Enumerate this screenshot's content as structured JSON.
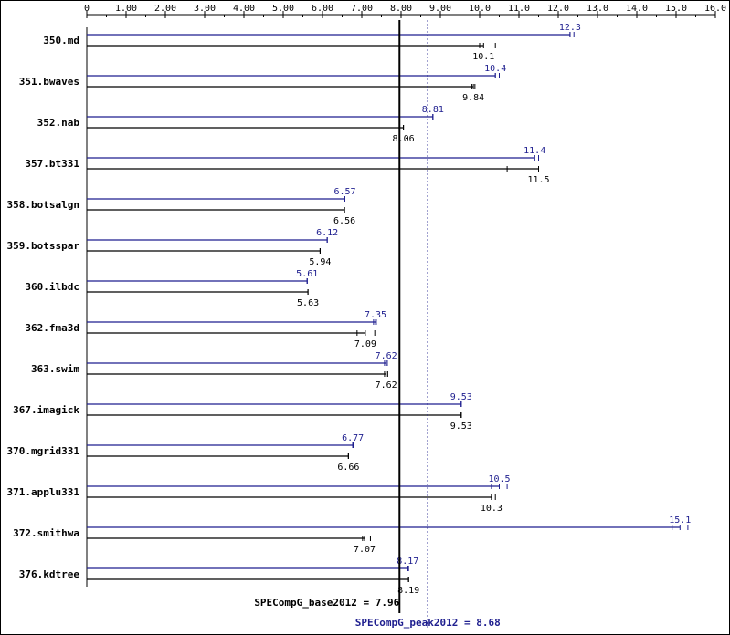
{
  "chart_data": {
    "type": "bar",
    "orientation": "horizontal",
    "xlim": [
      0,
      16
    ],
    "x_ticks": [
      "0",
      "1.00",
      "2.00",
      "3.00",
      "4.00",
      "5.00",
      "6.00",
      "7.00",
      "8.00",
      "9.00",
      "10.0",
      "11.0",
      "12.0",
      "13.0",
      "14.0",
      "15.0",
      "16.0"
    ],
    "categories": [
      "350.md",
      "351.bwaves",
      "352.nab",
      "357.bt331",
      "358.botsalgn",
      "359.botsspar",
      "360.ilbdc",
      "362.fma3d",
      "363.swim",
      "367.imagick",
      "370.mgrid331",
      "371.applu331",
      "372.smithwa",
      "376.kdtree"
    ],
    "series": [
      {
        "name": "peak",
        "color": "#1f1f8f",
        "values": [
          12.3,
          10.4,
          8.81,
          11.4,
          6.57,
          6.12,
          5.61,
          7.35,
          7.62,
          9.53,
          6.77,
          10.5,
          15.1,
          8.17
        ],
        "labels": [
          "12.3",
          "10.4",
          "8.81",
          "11.4",
          "6.57",
          "6.12",
          "5.61",
          "7.35",
          "7.62",
          "9.53",
          "6.77",
          "10.5",
          "15.1",
          "8.17"
        ],
        "run_min": [
          12.3,
          10.4,
          8.81,
          11.4,
          6.57,
          6.12,
          5.61,
          7.3,
          7.58,
          9.53,
          6.77,
          10.3,
          14.9,
          8.17
        ],
        "run_max": [
          12.4,
          10.5,
          8.81,
          11.5,
          6.57,
          6.12,
          5.61,
          7.37,
          7.65,
          9.53,
          6.79,
          10.7,
          15.3,
          8.19
        ]
      },
      {
        "name": "base",
        "color": "#000000",
        "values": [
          10.1,
          9.84,
          8.06,
          11.5,
          6.56,
          5.94,
          5.63,
          7.09,
          7.62,
          9.53,
          6.66,
          10.3,
          7.07,
          8.19
        ],
        "labels": [
          "10.1",
          "9.84",
          "8.06",
          "11.5",
          "6.56",
          "5.94",
          "5.63",
          "7.09",
          "7.62",
          "9.53",
          "6.66",
          "10.3",
          "7.07",
          "8.19"
        ],
        "run_min": [
          10.0,
          9.8,
          8.06,
          10.7,
          6.56,
          5.94,
          5.63,
          6.88,
          7.58,
          9.53,
          6.66,
          10.3,
          7.02,
          8.19
        ],
        "run_max": [
          10.4,
          9.88,
          8.06,
          11.5,
          6.56,
          5.94,
          5.63,
          7.33,
          7.66,
          9.53,
          6.66,
          10.4,
          7.22,
          8.19
        ]
      }
    ],
    "reference_lines": [
      {
        "name": "base",
        "value": 7.96,
        "label": "SPECompG_base2012 = 7.96",
        "style": "solid",
        "color": "#000000"
      },
      {
        "name": "peak",
        "value": 8.68,
        "label": "SPECompG_peak2012 = 8.68",
        "style": "dotted",
        "color": "#1f1f8f"
      }
    ],
    "grid": false
  }
}
